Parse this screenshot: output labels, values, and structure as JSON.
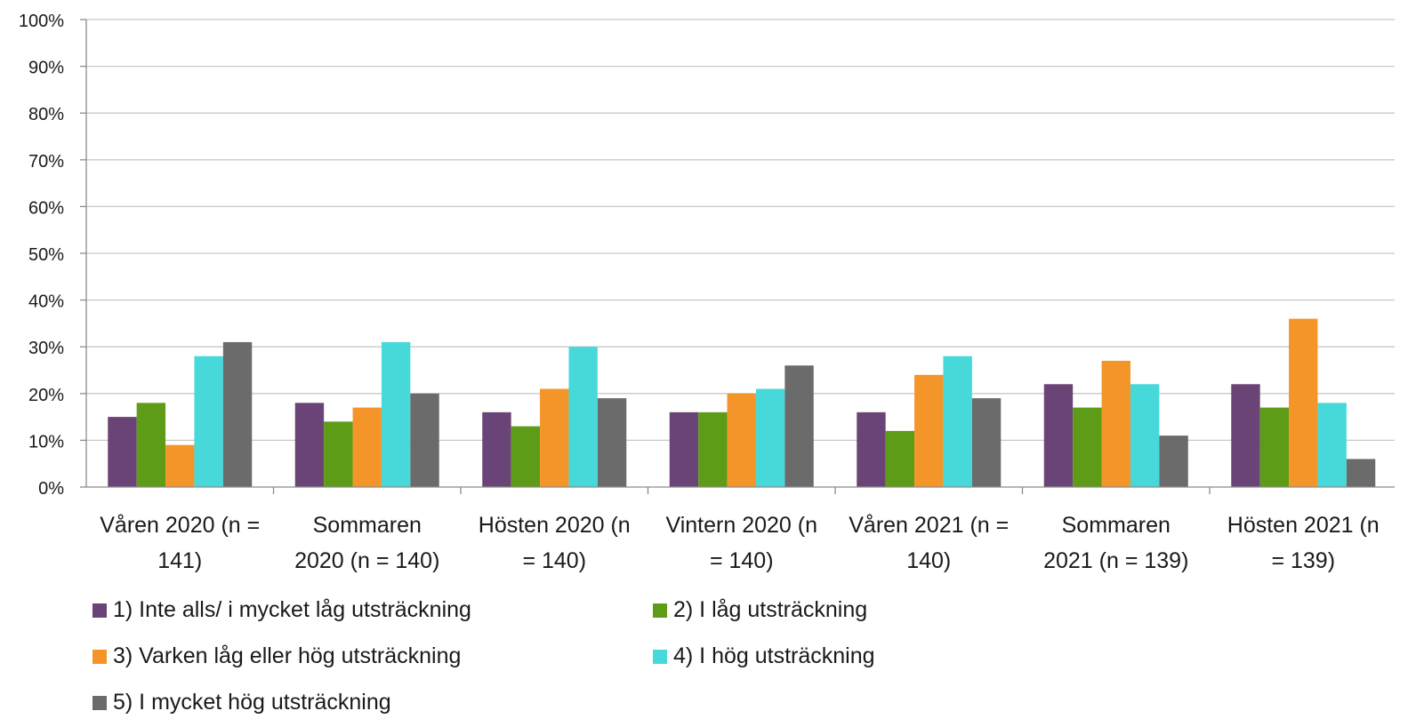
{
  "chart_data": {
    "type": "bar",
    "title": "",
    "xlabel": "",
    "ylabel": "",
    "ylim": [
      0,
      100
    ],
    "yticks": [
      "0%",
      "10%",
      "20%",
      "30%",
      "40%",
      "50%",
      "60%",
      "70%",
      "80%",
      "90%",
      "100%"
    ],
    "grid": true,
    "legend_position": "bottom",
    "categories": [
      [
        "Våren 2020 (n =",
        "141)"
      ],
      [
        "Sommaren",
        "2020 (n = 140)"
      ],
      [
        "Hösten 2020 (n",
        "= 140)"
      ],
      [
        "Vintern 2020 (n",
        "= 140)"
      ],
      [
        "Våren 2021 (n =",
        "140)"
      ],
      [
        "Sommaren",
        "2021 (n = 139)"
      ],
      [
        "Hösten 2021 (n",
        "= 139)"
      ]
    ],
    "series": [
      {
        "name": "1) Inte alls/ i mycket låg utsträckning",
        "color": "#6b4477",
        "values": [
          15,
          18,
          16,
          16,
          16,
          22,
          22
        ]
      },
      {
        "name": "2) I låg utsträckning",
        "color": "#5e9c17",
        "values": [
          18,
          14,
          13,
          16,
          12,
          17,
          17
        ]
      },
      {
        "name": "3) Varken låg eller hög utsträckning",
        "color": "#f4952a",
        "values": [
          9,
          17,
          21,
          20,
          24,
          27,
          36
        ]
      },
      {
        "name": "4) I hög utsträckning",
        "color": "#47d9da",
        "values": [
          28,
          31,
          30,
          21,
          28,
          22,
          18
        ]
      },
      {
        "name": "5) I mycket hög utsträckning",
        "color": "#6b6b6b",
        "values": [
          31,
          20,
          19,
          26,
          19,
          11,
          6
        ]
      }
    ]
  }
}
